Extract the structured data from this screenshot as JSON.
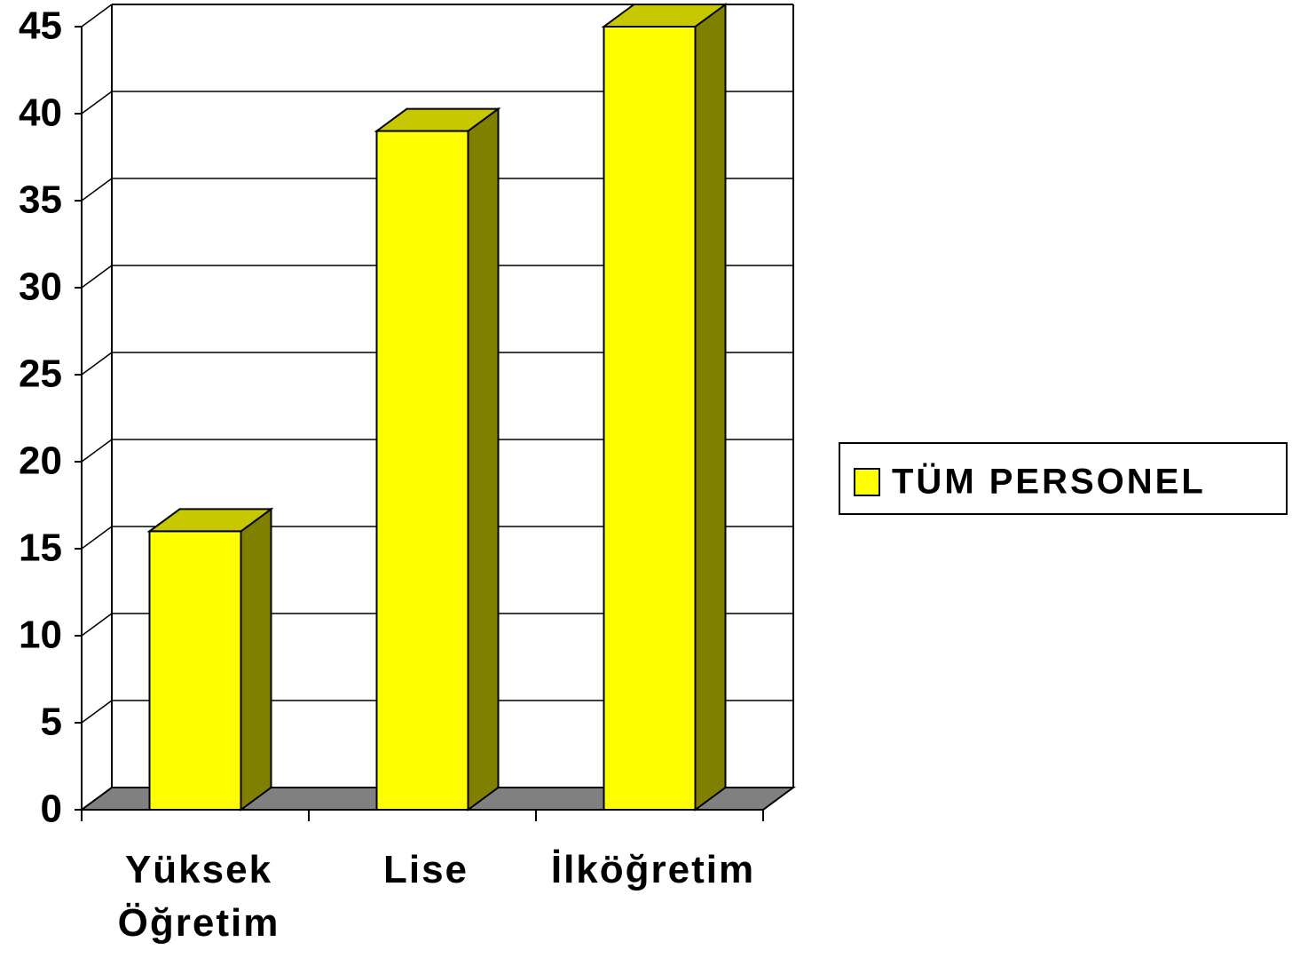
{
  "chart_data": {
    "type": "bar3d",
    "categories": [
      "Yüksek Öğretim",
      "Lise",
      "İlköğretim"
    ],
    "series": [
      {
        "name": "TÜM PERSONEL",
        "color": "#ffff00",
        "values": [
          16,
          39,
          45
        ]
      }
    ],
    "ylim": [
      0,
      45
    ],
    "yticks": [
      0,
      5,
      10,
      15,
      20,
      25,
      30,
      35,
      40,
      45
    ],
    "grid": true,
    "legend": "right"
  }
}
